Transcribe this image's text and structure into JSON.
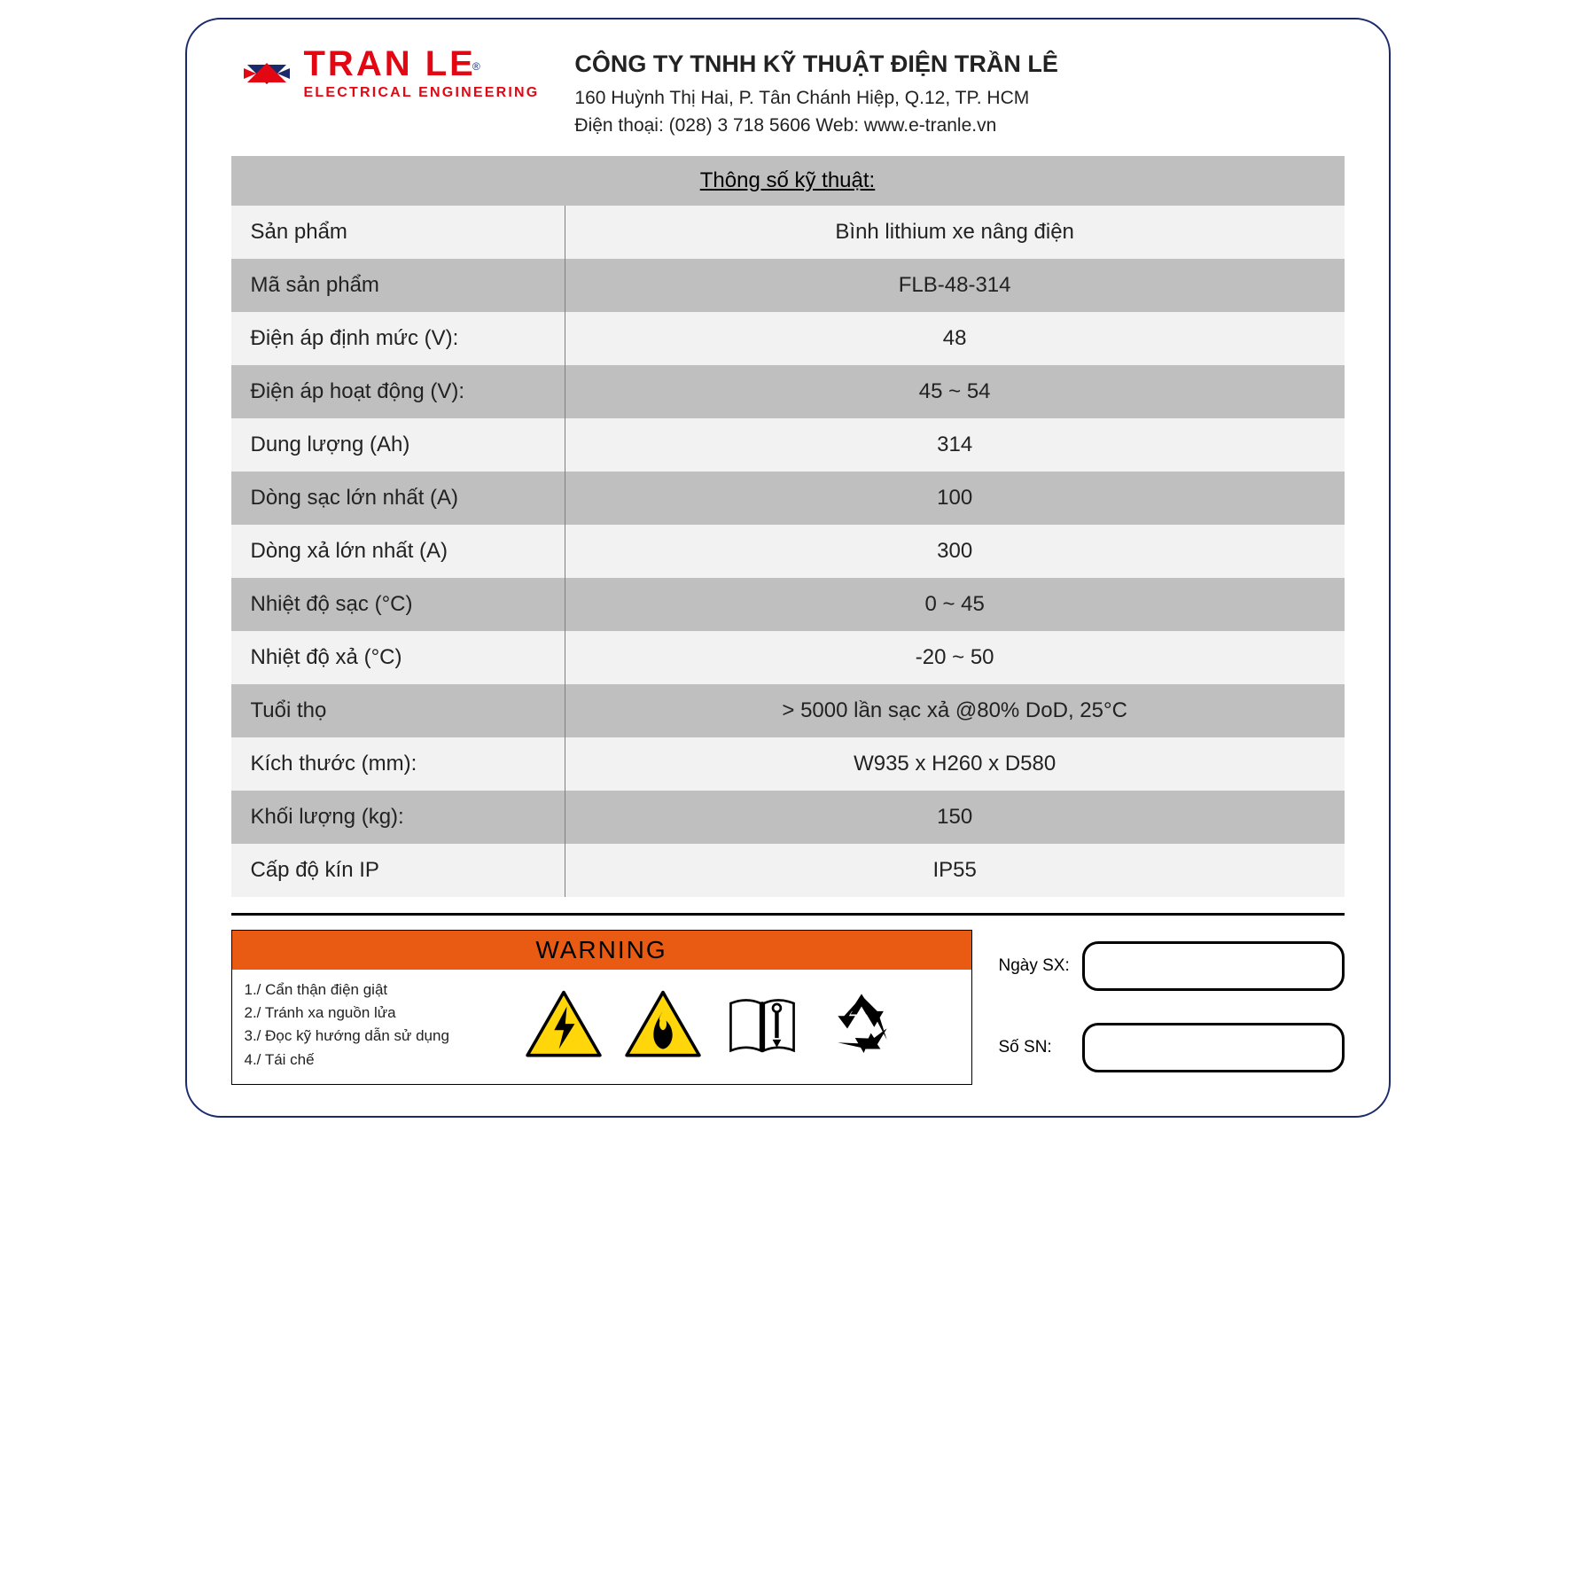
{
  "logo": {
    "name": "TRAN LE",
    "sub": "ELECTRICAL ENGINEERING",
    "colors": {
      "red": "#e30613",
      "blue": "#1a2a6c"
    }
  },
  "company": {
    "name": "CÔNG TY TNHH KỸ THUẬT ĐIỆN TRẦN LÊ",
    "address": "160 Huỳnh Thị Hai, P. Tân Chánh Hiệp, Q.12, TP. HCM",
    "contact": "Điện thoại: (028) 3 718 5606  Web: www.e-tranle.vn"
  },
  "specs": {
    "title": "Thông số kỹ thuật:",
    "rows": [
      {
        "label": "Sản phẩm",
        "value": "Bình lithium xe nâng điện"
      },
      {
        "label": "Mã sản phẩm",
        "value": "FLB-48-314"
      },
      {
        "label": "Điện áp định mức (V):",
        "value": "48"
      },
      {
        "label": "Điện áp hoạt động (V):",
        "value": "45 ~ 54"
      },
      {
        "label": "Dung lượng (Ah)",
        "value": "314"
      },
      {
        "label": "Dòng sạc lớn nhất (A)",
        "value": "100"
      },
      {
        "label": "Dòng xả lớn nhất (A)",
        "value": "300"
      },
      {
        "label": "Nhiệt độ sạc (°C)",
        "value": "0 ~ 45"
      },
      {
        "label": "Nhiệt độ xả (°C)",
        "value": "-20 ~ 50"
      },
      {
        "label": "Tuổi thọ",
        "value": "> 5000 lần sạc xả @80% DoD, 25°C"
      },
      {
        "label": "Kích thước (mm):",
        "value": "W935 x H260 x D580"
      },
      {
        "label": "Khối lượng (kg):",
        "value": "150"
      },
      {
        "label": "Cấp độ kín IP",
        "value": "IP55"
      }
    ],
    "colors": {
      "header_bg": "#bfbfbf",
      "row_light": "#f2f2f2",
      "row_dark": "#bfbfbf",
      "divider": "#808080"
    }
  },
  "warning": {
    "title": "WARNING",
    "header_bg": "#e95a13",
    "items": [
      "1./ Cẩn thận điện giật",
      "2./ Tránh xa nguồn lửa",
      "3./ Đọc kỹ hướng dẫn sử dụng",
      "4./ Tái chế"
    ],
    "icon_colors": {
      "triangle_fill": "#ffd60a",
      "triangle_stroke": "#000000",
      "book_stroke": "#000000",
      "recycle_fill": "#000000"
    }
  },
  "meta": {
    "date_label": "Ngày SX:",
    "sn_label": "Số SN:"
  }
}
